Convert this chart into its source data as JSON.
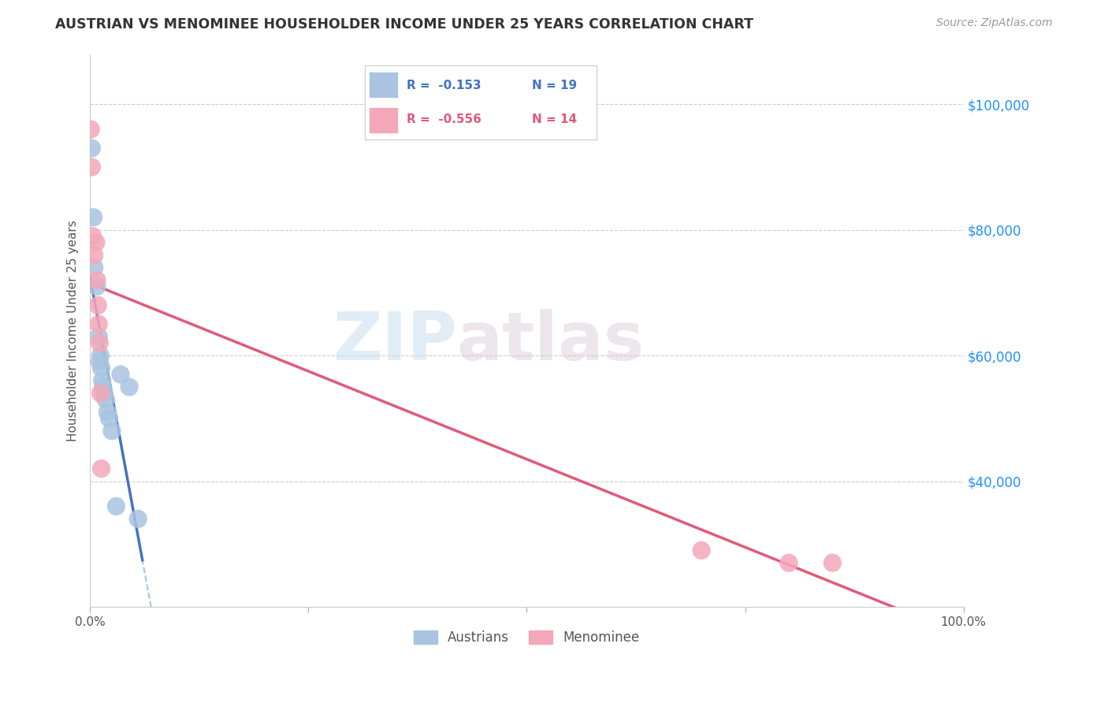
{
  "title": "AUSTRIAN VS MENOMINEE HOUSEHOLDER INCOME UNDER 25 YEARS CORRELATION CHART",
  "source": "Source: ZipAtlas.com",
  "ylabel": "Householder Income Under 25 years",
  "legend_austrians": "Austrians",
  "legend_menominee": "Menominee",
  "legend_r_austrians": "R =  -0.153",
  "legend_n_austrians": "N = 19",
  "legend_r_menominee": "R =  -0.556",
  "legend_n_menominee": "N = 14",
  "yticks": [
    40000,
    60000,
    80000,
    100000
  ],
  "ytick_labels": [
    "$40,000",
    "$60,000",
    "$80,000",
    "$100,000"
  ],
  "color_austrians": "#a8c4e0",
  "color_menominee": "#f4a7b9",
  "color_line_austrians": "#4472c4",
  "color_line_menominee": "#e05a7a",
  "color_line_austrians_dashed": "#a8c4e0",
  "watermark_zip": "ZIP",
  "watermark_atlas": "atlas",
  "austrians_x": [
    0.2,
    0.4,
    0.5,
    0.8,
    1.0,
    1.1,
    1.2,
    1.3,
    1.4,
    1.5,
    1.6,
    1.8,
    2.0,
    2.2,
    2.5,
    3.0,
    3.5,
    4.5,
    5.5
  ],
  "austrians_y": [
    93000,
    82000,
    74000,
    71000,
    63000,
    59000,
    60000,
    58000,
    56000,
    55000,
    54000,
    53000,
    51000,
    50000,
    48000,
    36000,
    57000,
    55000,
    34000
  ],
  "menominee_x": [
    0.1,
    0.2,
    0.3,
    0.5,
    0.7,
    0.8,
    0.9,
    1.0,
    1.1,
    1.2,
    1.3,
    70.0,
    80.0,
    85.0
  ],
  "menominee_y": [
    96000,
    90000,
    79000,
    76000,
    78000,
    72000,
    68000,
    65000,
    62000,
    54000,
    42000,
    29000,
    27000,
    27000
  ],
  "xlim": [
    0.0,
    100.0
  ],
  "ylim": [
    20000,
    108000
  ],
  "xtick_positions": [
    0.0,
    25.0,
    50.0,
    75.0,
    100.0
  ],
  "xtick_labels": [
    "0.0%",
    "",
    "",
    "",
    "100.0%"
  ]
}
